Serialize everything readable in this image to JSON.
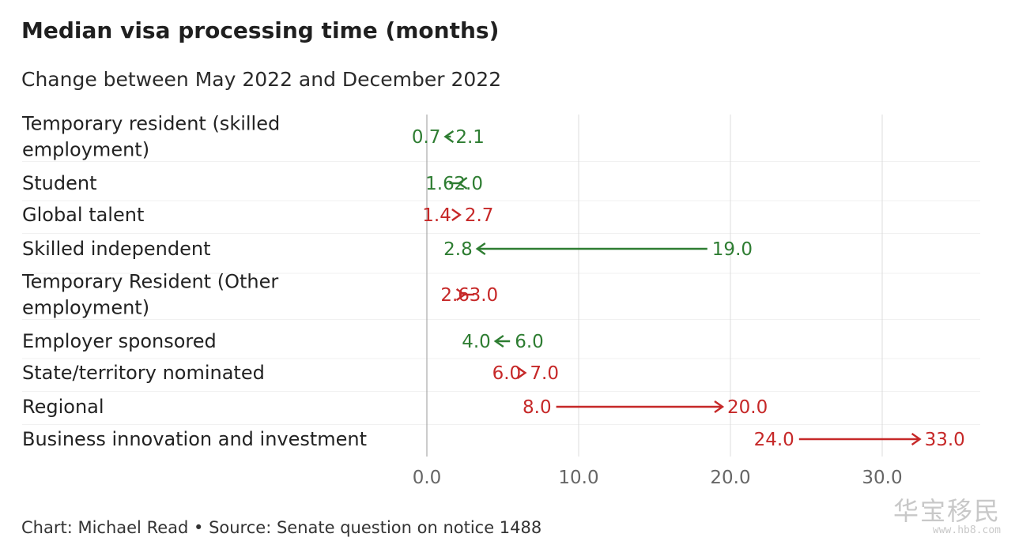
{
  "footer": "Chart: Michael Read • Source: Senate question on notice 1488",
  "watermark": {
    "text": "华宝移民",
    "url": "www.hb8.com"
  },
  "colors": {
    "decrease": "#2e7d32",
    "increase": "#c62828",
    "grid": "#dcdcdc",
    "zero_line": "#9a9a9a",
    "label": "#222222",
    "tick": "#666666"
  },
  "chart_data": {
    "type": "arrow",
    "title": "Median visa processing time (months)",
    "subtitle": "Change between May 2022 and December 2022",
    "xlim": [
      0,
      36
    ],
    "xticks": [
      0,
      10,
      20,
      30
    ],
    "xtick_labels": [
      "0.0",
      "10.0",
      "20.0",
      "30.0"
    ],
    "grid": true,
    "categories": [
      {
        "name": "Temporary resident (skilled employment)",
        "lines": [
          "Temporary resident (skilled",
          "employment)"
        ],
        "may_2022": 2.1,
        "dec_2022": 0.7
      },
      {
        "name": "Student",
        "lines": [
          "Student"
        ],
        "may_2022": 2.0,
        "dec_2022": 1.6
      },
      {
        "name": "Global talent",
        "lines": [
          "Global talent"
        ],
        "may_2022": 1.4,
        "dec_2022": 2.7
      },
      {
        "name": "Skilled independent",
        "lines": [
          "Skilled independent"
        ],
        "may_2022": 19.0,
        "dec_2022": 2.8
      },
      {
        "name": "Temporary Resident (Other employment)",
        "lines": [
          "Temporary Resident (Other",
          "employment)"
        ],
        "may_2022": 2.6,
        "dec_2022": 3.0
      },
      {
        "name": "Employer sponsored",
        "lines": [
          "Employer sponsored"
        ],
        "may_2022": 6.0,
        "dec_2022": 4.0
      },
      {
        "name": "State/territory nominated",
        "lines": [
          "State/territory nominated"
        ],
        "may_2022": 6.0,
        "dec_2022": 7.0
      },
      {
        "name": "Regional",
        "lines": [
          "Regional"
        ],
        "may_2022": 8.0,
        "dec_2022": 20.0
      },
      {
        "name": "Business innovation and investment",
        "lines": [
          "Business innovation and investment"
        ],
        "may_2022": 24.0,
        "dec_2022": 33.0
      }
    ]
  }
}
